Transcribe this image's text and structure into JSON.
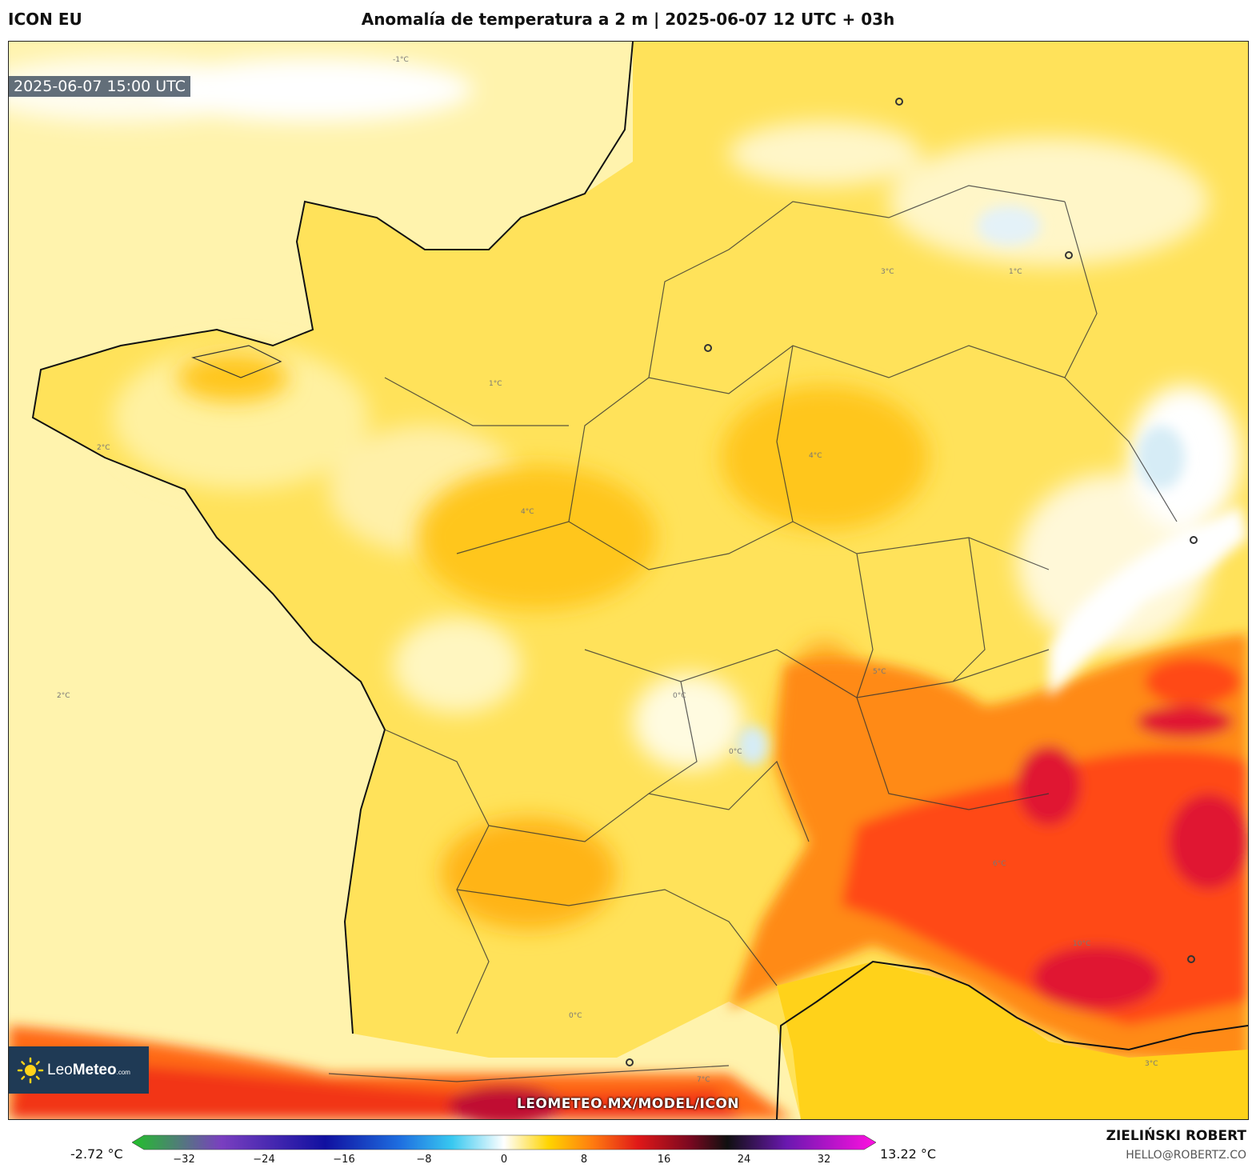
{
  "header": {
    "model": "ICON EU",
    "title": "Anomalía de temperatura a 2 m | 2025-06-07 12 UTC + 03h"
  },
  "map": {
    "valid_time": "2025-06-07 15:00 UTC",
    "region": "France",
    "isoline_labels": [
      "0°C",
      "1°C",
      "2°C",
      "3°C",
      "4°C",
      "5°C",
      "6°C",
      "7°C",
      "10°C",
      "-1°C"
    ],
    "watermark": "LEOMETEO.MX/MODEL/ICON"
  },
  "logo": {
    "brand_light": "Leo",
    "brand_bold": "Meteo",
    "brand_suffix": ".com"
  },
  "colorbar": {
    "min_label": "-2.72 °C",
    "max_label": "13.22 °C",
    "ticks": [
      "−32",
      "−24",
      "−16",
      "−8",
      "0",
      "8",
      "16",
      "24",
      "32"
    ],
    "range": [
      -36,
      36
    ],
    "colors": {
      "green": "#22c02a",
      "purple": "#7a3fc0",
      "navy": "#1010a0",
      "blue": "#1e6ee0",
      "cyan": "#38c8f0",
      "white": "#ffffff",
      "yellow": "#ffd400",
      "orange": "#ff7a10",
      "red": "#e01818",
      "darkred": "#7a0820",
      "black": "#101010",
      "violet": "#6a18b0",
      "magenta": "#ff10e0"
    }
  },
  "credit": {
    "author": "ZIELIŃSKI ROBERT",
    "email": "HELLO@ROBERTZ.CO"
  }
}
